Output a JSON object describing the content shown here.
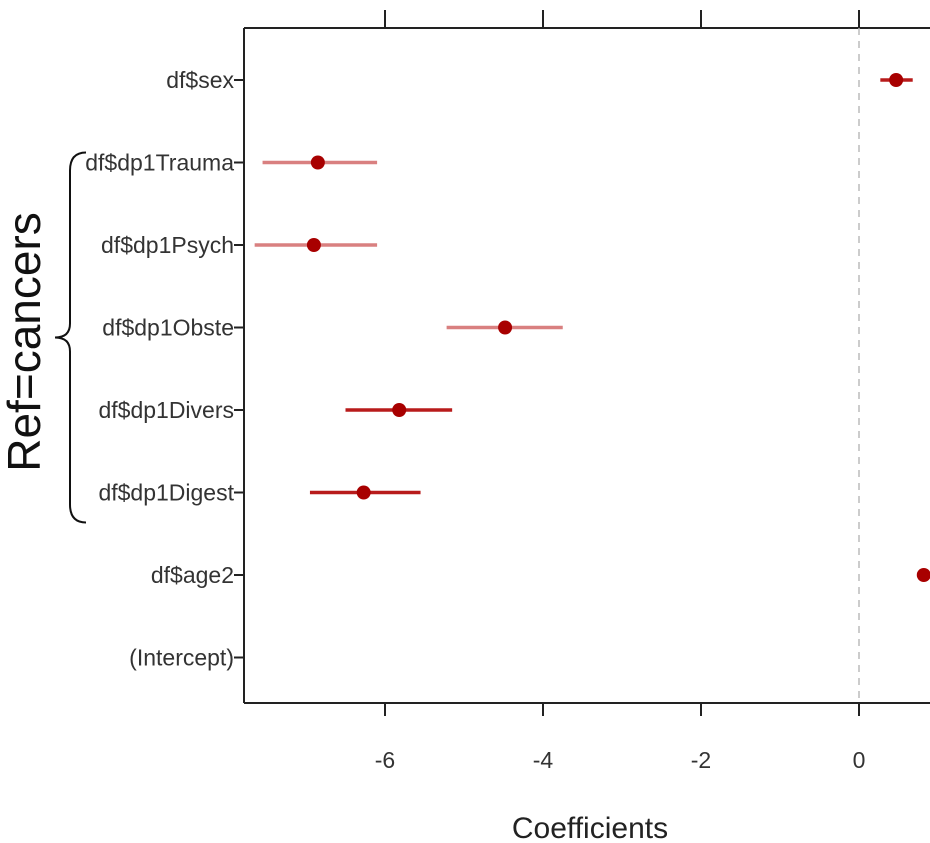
{
  "chart_data": {
    "type": "coefficient-plot",
    "xlabel": "Coefficients",
    "x_ticks": [
      -6,
      -4,
      -2,
      0
    ],
    "xlim": [
      -7.75,
      0.9
    ],
    "reference_line": 0,
    "group_label": "Ref=cancers",
    "group_members": [
      "df$dp1Trauma",
      "df$dp1Psych",
      "df$dp1Obste",
      "df$dp1Divers",
      "df$dp1Digest"
    ],
    "coefficients": [
      {
        "name": "df$sex",
        "estimate": 0.47,
        "ci_low": 0.27,
        "ci_high": 0.68
      },
      {
        "name": "df$dp1Trauma",
        "estimate": -6.85,
        "ci_low": -7.55,
        "ci_high": -6.1
      },
      {
        "name": "df$dp1Psych",
        "estimate": -6.9,
        "ci_low": -7.65,
        "ci_high": -6.1
      },
      {
        "name": "df$dp1Obste",
        "estimate": -4.48,
        "ci_low": -5.22,
        "ci_high": -3.75
      },
      {
        "name": "df$dp1Divers",
        "estimate": -5.82,
        "ci_low": -6.5,
        "ci_high": -5.15
      },
      {
        "name": "df$dp1Digest",
        "estimate": -6.27,
        "ci_low": -6.95,
        "ci_high": -5.55
      },
      {
        "name": "df$age2",
        "estimate": 0.82,
        "ci_low": 0.8,
        "ci_high": 0.86
      },
      {
        "name": "(Intercept)",
        "estimate": null,
        "ci_low": null,
        "ci_high": null
      }
    ],
    "colors": {
      "point": "#a80000",
      "ci_line_dark": "#b81b1b",
      "ci_line_light": "#d98080",
      "reference_line": "#bbbbbb",
      "axis": "#222222"
    }
  }
}
